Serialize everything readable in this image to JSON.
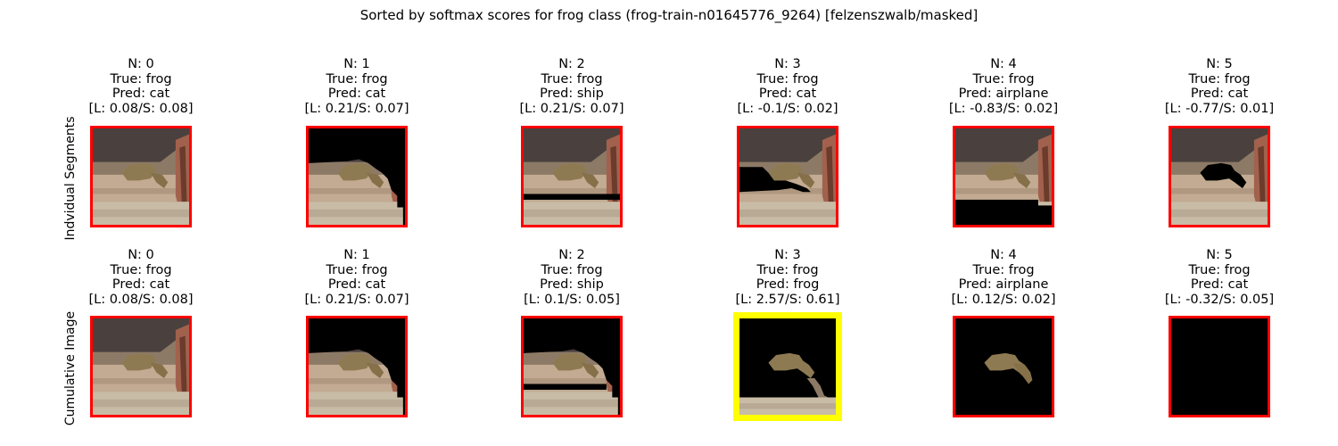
{
  "suptitle": "Sorted by softmax scores for frog class (frog-train-n01645776_9264) [felzenszwalb/masked]",
  "row_labels": [
    "Indvidual Segments",
    "Cumulative Image"
  ],
  "colors": {
    "normal_border": "#ff0000",
    "highlight_border": "#ffff00"
  },
  "chart_data": {
    "type": "image-grid",
    "rows": [
      {
        "label": "Indvidual Segments",
        "panels": [
          {
            "n": "N: 0",
            "true": "True: frog",
            "pred": "Pred: cat",
            "scores": "[L: 0.08/S: 0.08]",
            "L": 0.08,
            "S": 0.08,
            "highlight": false,
            "mask": "none"
          },
          {
            "n": "N: 1",
            "true": "True: frog",
            "pred": "Pred: cat",
            "scores": "[L: 0.21/S: 0.07]",
            "L": 0.21,
            "S": 0.07,
            "highlight": false,
            "mask": "wall-right"
          },
          {
            "n": "N: 2",
            "true": "True: frog",
            "pred": "Pred: ship",
            "scores": "[L: 0.21/S: 0.07]",
            "L": 0.21,
            "S": 0.07,
            "highlight": false,
            "mask": "stripe"
          },
          {
            "n": "N: 3",
            "true": "True: frog",
            "pred": "Pred: cat",
            "scores": "[L: -0.1/S: 0.02]",
            "L": -0.1,
            "S": 0.02,
            "highlight": false,
            "mask": "left-band"
          },
          {
            "n": "N: 4",
            "true": "True: frog",
            "pred": "Pred: airplane",
            "scores": "[L: -0.83/S: 0.02]",
            "L": -0.83,
            "S": 0.02,
            "highlight": false,
            "mask": "bottom"
          },
          {
            "n": "N: 5",
            "true": "True: frog",
            "pred": "Pred: cat",
            "scores": "[L: -0.77/S: 0.01]",
            "L": -0.77,
            "S": 0.01,
            "highlight": false,
            "mask": "frog-hole"
          }
        ]
      },
      {
        "label": "Cumulative Image",
        "panels": [
          {
            "n": "N: 0",
            "true": "True: frog",
            "pred": "Pred: cat",
            "scores": "[L: 0.08/S: 0.08]",
            "L": 0.08,
            "S": 0.08,
            "highlight": false,
            "mask": "none"
          },
          {
            "n": "N: 1",
            "true": "True: frog",
            "pred": "Pred: cat",
            "scores": "[L: 0.21/S: 0.07]",
            "L": 0.21,
            "S": 0.07,
            "highlight": false,
            "mask": "wall-right"
          },
          {
            "n": "N: 2",
            "true": "True: frog",
            "pred": "Pred: ship",
            "scores": "[L: 0.1/S: 0.05]",
            "L": 0.1,
            "S": 0.05,
            "highlight": false,
            "mask": "wall-right-stripe"
          },
          {
            "n": "N: 3",
            "true": "True: frog",
            "pred": "Pred: frog",
            "scores": "[L: 2.57/S: 0.61]",
            "L": 2.57,
            "S": 0.61,
            "highlight": true,
            "mask": "frog-floor"
          },
          {
            "n": "N: 4",
            "true": "True: frog",
            "pred": "Pred: airplane",
            "scores": "[L: 0.12/S: 0.02]",
            "L": 0.12,
            "S": 0.02,
            "highlight": false,
            "mask": "frog-only"
          },
          {
            "n": "N: 5",
            "true": "True: frog",
            "pred": "Pred: cat",
            "scores": "[L: -0.32/S: 0.05]",
            "L": -0.32,
            "S": 0.05,
            "highlight": false,
            "mask": "all-black"
          }
        ]
      }
    ]
  }
}
